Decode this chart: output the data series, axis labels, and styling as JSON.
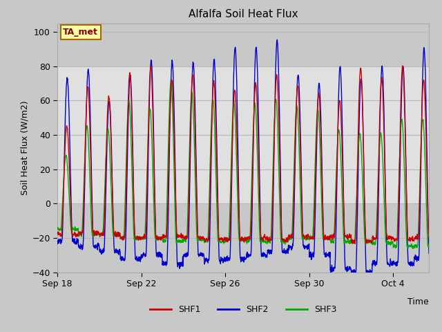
{
  "title": "Alfalfa Soil Heat Flux",
  "ylabel": "Soil Heat Flux (W/m2)",
  "ylim": [
    -40,
    105
  ],
  "yticks": [
    -40,
    -20,
    0,
    20,
    40,
    60,
    80,
    100
  ],
  "shaded_band": [
    0,
    80
  ],
  "fig_bg_color": "#c8c8c8",
  "plot_bg_color": "#c8c8c8",
  "shaded_color": "#e0e0e0",
  "series_colors": [
    "#cc0000",
    "#0000cc",
    "#00aa00"
  ],
  "series_labels": [
    "SHF1",
    "SHF2",
    "SHF3"
  ],
  "annotation_text": "TA_met",
  "annotation_bg": "#ffffaa",
  "annotation_border": "#aa6600",
  "annotation_text_color": "#880000",
  "n_days": 18,
  "points_per_day": 96,
  "shf1_peaks": [
    45,
    68,
    62,
    76,
    80,
    72,
    75,
    71,
    66,
    70,
    75,
    69,
    64,
    60,
    79,
    73,
    80,
    72
  ],
  "shf1_troughs": [
    -18,
    -17,
    -18,
    -20,
    -20,
    -19,
    -20,
    -21,
    -21,
    -20,
    -21,
    -19,
    -20,
    -19,
    -22,
    -20,
    -21,
    -20
  ],
  "shf2_peaks": [
    73,
    78,
    60,
    75,
    83,
    83,
    82,
    84,
    91,
    91,
    95,
    75,
    70,
    80,
    73,
    80,
    80,
    90
  ],
  "shf2_troughs": [
    -22,
    -25,
    -28,
    -32,
    -30,
    -35,
    -30,
    -33,
    -32,
    -30,
    -28,
    -25,
    -30,
    -38,
    -40,
    -35,
    -35,
    -32
  ],
  "shf3_peaks": [
    28,
    45,
    43,
    60,
    55,
    71,
    65,
    60,
    59,
    58,
    61,
    57,
    55,
    43,
    41,
    41,
    49,
    49
  ],
  "shf3_troughs": [
    -15,
    -18,
    -18,
    -20,
    -20,
    -22,
    -21,
    -22,
    -21,
    -22,
    -22,
    -20,
    -20,
    -22,
    -22,
    -23,
    -25,
    -25
  ],
  "xtick_positions": [
    0,
    4,
    8,
    12,
    16
  ],
  "xtick_labels": [
    "Sep 18",
    "Sep 22",
    "Sep 26",
    "Sep 30",
    "Oct 4"
  ],
  "grid_color": "#b8b8b8",
  "line_width": 1.0
}
